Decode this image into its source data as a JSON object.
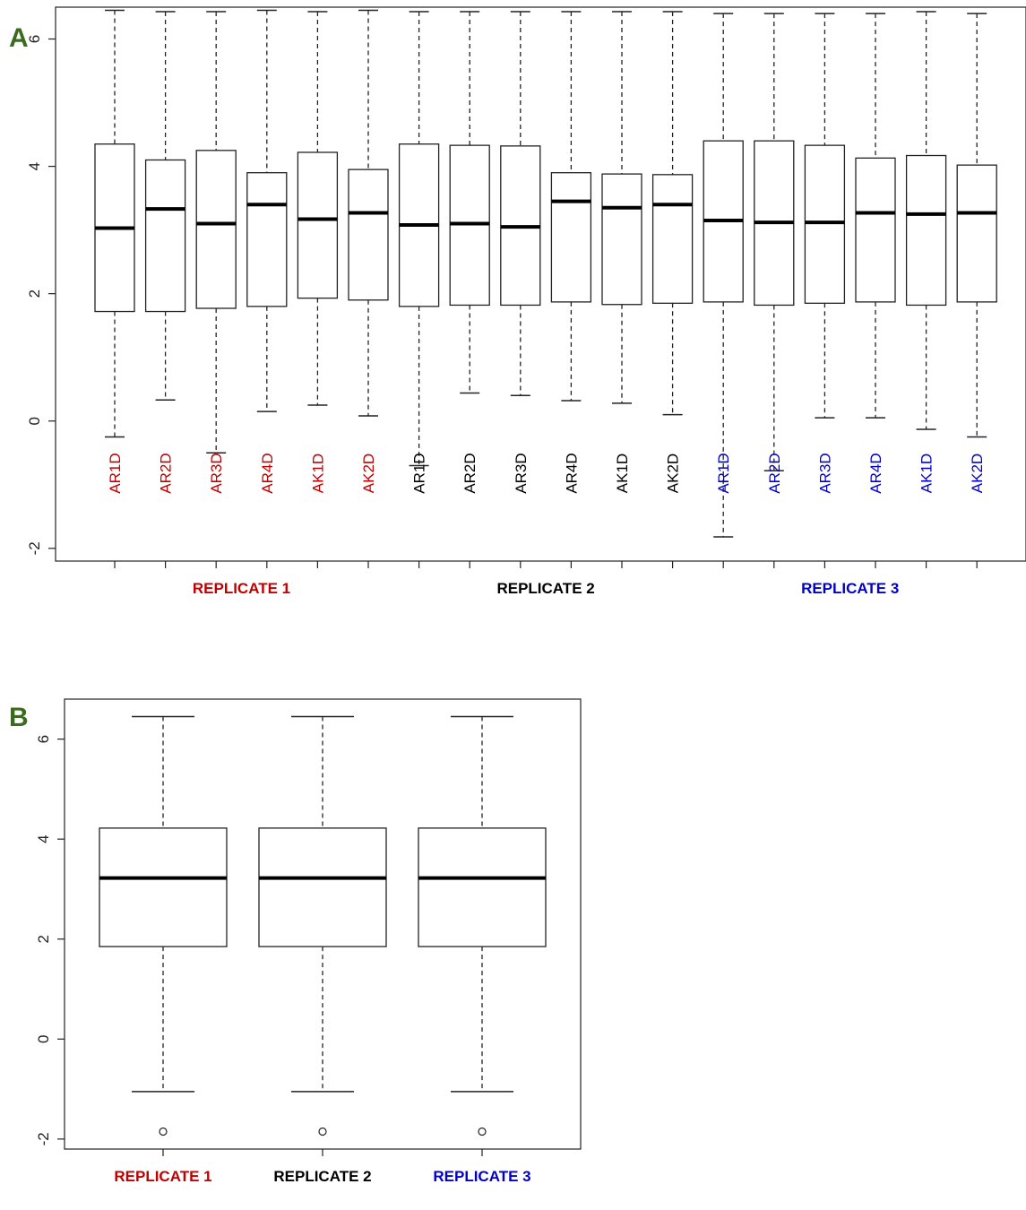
{
  "colors": {
    "replicate_1": "#c00000",
    "replicate_2": "#000000",
    "replicate_3": "#0000cc",
    "panel_letter": "#3a6b1e"
  },
  "chart_data": [
    {
      "panel": "A",
      "type": "boxplot",
      "ylim": [
        -2.2,
        6.5
      ],
      "y_ticks": [
        -2,
        0,
        2,
        4,
        6
      ],
      "categories": [
        "AR1D",
        "AR2D",
        "AR3D",
        "AR4D",
        "AK1D",
        "AK2D",
        "AR1D",
        "AR2D",
        "AR3D",
        "AR4D",
        "AK1D",
        "AK2D",
        "AR1D",
        "AR2D",
        "AR3D",
        "AR4D",
        "AK1D",
        "AK2D"
      ],
      "category_groups": [
        "REPLICATE 1",
        "REPLICATE 1",
        "REPLICATE 1",
        "REPLICATE 1",
        "REPLICATE 1",
        "REPLICATE 1",
        "REPLICATE 2",
        "REPLICATE 2",
        "REPLICATE 2",
        "REPLICATE 2",
        "REPLICATE 2",
        "REPLICATE 2",
        "REPLICATE 3",
        "REPLICATE 3",
        "REPLICATE 3",
        "REPLICATE 3",
        "REPLICATE 3",
        "REPLICATE 3"
      ],
      "groups": [
        {
          "label": "REPLICATE 1",
          "color": "#c00000"
        },
        {
          "label": "REPLICATE 2",
          "color": "#000000"
        },
        {
          "label": "REPLICATE 3",
          "color": "#0000cc"
        }
      ],
      "boxes": [
        {
          "min": -0.25,
          "q1": 1.72,
          "median": 3.03,
          "q3": 4.35,
          "max": 6.45
        },
        {
          "min": 0.33,
          "q1": 1.72,
          "median": 3.33,
          "q3": 4.1,
          "max": 6.43
        },
        {
          "min": -0.5,
          "q1": 1.77,
          "median": 3.1,
          "q3": 4.25,
          "max": 6.43
        },
        {
          "min": 0.15,
          "q1": 1.8,
          "median": 3.4,
          "q3": 3.9,
          "max": 6.45
        },
        {
          "min": 0.25,
          "q1": 1.93,
          "median": 3.17,
          "q3": 4.22,
          "max": 6.43
        },
        {
          "min": 0.08,
          "q1": 1.9,
          "median": 3.27,
          "q3": 3.95,
          "max": 6.45
        },
        {
          "min": -0.7,
          "q1": 1.8,
          "median": 3.08,
          "q3": 4.35,
          "max": 6.43
        },
        {
          "min": 0.44,
          "q1": 1.82,
          "median": 3.1,
          "q3": 4.33,
          "max": 6.43
        },
        {
          "min": 0.4,
          "q1": 1.82,
          "median": 3.05,
          "q3": 4.32,
          "max": 6.43
        },
        {
          "min": 0.32,
          "q1": 1.87,
          "median": 3.45,
          "q3": 3.9,
          "max": 6.43
        },
        {
          "min": 0.28,
          "q1": 1.83,
          "median": 3.35,
          "q3": 3.88,
          "max": 6.43
        },
        {
          "min": 0.1,
          "q1": 1.85,
          "median": 3.4,
          "q3": 3.87,
          "max": 6.43
        },
        {
          "min": -1.82,
          "q1": 1.87,
          "median": 3.15,
          "q3": 4.4,
          "max": 6.4
        },
        {
          "min": -0.78,
          "q1": 1.82,
          "median": 3.12,
          "q3": 4.4,
          "max": 6.4
        },
        {
          "min": 0.05,
          "q1": 1.85,
          "median": 3.12,
          "q3": 4.33,
          "max": 6.4
        },
        {
          "min": 0.05,
          "q1": 1.87,
          "median": 3.27,
          "q3": 4.13,
          "max": 6.4
        },
        {
          "min": -0.13,
          "q1": 1.82,
          "median": 3.25,
          "q3": 4.17,
          "max": 6.43
        },
        {
          "min": -0.25,
          "q1": 1.87,
          "median": 3.27,
          "q3": 4.02,
          "max": 6.4
        }
      ]
    },
    {
      "panel": "B",
      "type": "boxplot",
      "ylim": [
        -2.2,
        6.8
      ],
      "y_ticks": [
        -2,
        0,
        2,
        4,
        6
      ],
      "categories": [
        "REPLICATE 1",
        "REPLICATE 2",
        "REPLICATE 3"
      ],
      "category_colors": [
        "#c00000",
        "#000000",
        "#0000cc"
      ],
      "boxes": [
        {
          "min": -1.05,
          "q1": 1.85,
          "median": 3.22,
          "q3": 4.22,
          "max": 6.45,
          "outliers": [
            -1.85
          ]
        },
        {
          "min": -1.05,
          "q1": 1.85,
          "median": 3.22,
          "q3": 4.22,
          "max": 6.45,
          "outliers": [
            -1.85
          ]
        },
        {
          "min": -1.05,
          "q1": 1.85,
          "median": 3.22,
          "q3": 4.22,
          "max": 6.45,
          "outliers": [
            -1.85
          ]
        }
      ]
    }
  ]
}
